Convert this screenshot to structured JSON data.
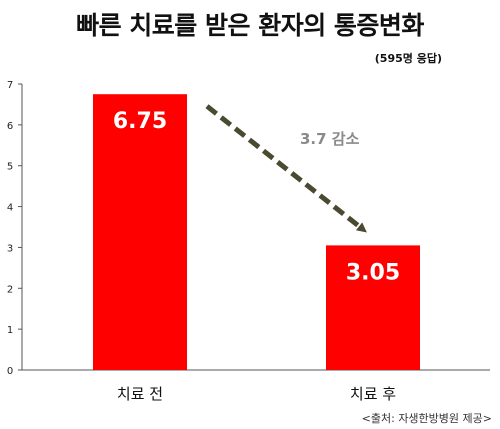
{
  "chart_data": {
    "type": "bar",
    "title": "빠른 치료를 받은 환자의 통증변화",
    "subtitle": "(595명 응답)",
    "categories": [
      "치료 전",
      "치료 후"
    ],
    "values": [
      6.75,
      3.05
    ],
    "data_labels": [
      "6.75",
      "3.05"
    ],
    "y_ticks": [
      "0",
      "1",
      "2",
      "3",
      "4",
      "5",
      "6",
      "7"
    ],
    "ylim": [
      0,
      7
    ],
    "annotation": "3.7 감소",
    "source": "<출처: 자생한방병원 제공>",
    "bar_color": "#ff0000",
    "arrow_color": "#4a4a30",
    "grid": false
  }
}
